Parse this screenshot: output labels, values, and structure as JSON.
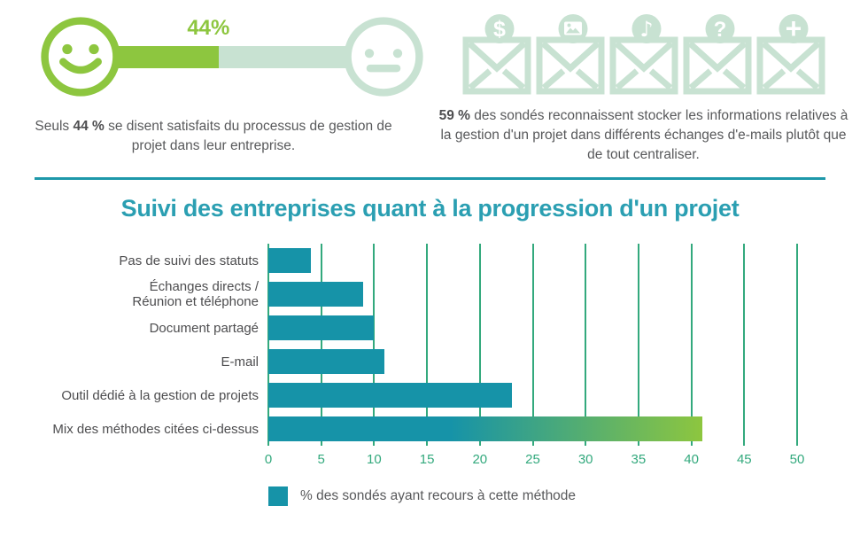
{
  "colors": {
    "green": "#8DC63F",
    "mint": "#C8E2D2",
    "teal_bar": "#1693A8",
    "teal_title": "#2B9FB2",
    "teal_divider": "#1E98AA",
    "grid_green": "#33A97D",
    "text_gray": "#58595B"
  },
  "satisfaction": {
    "percent_label": "44%",
    "percent_value": 44,
    "text_prefix": "Seuls ",
    "text_bold": "44 %",
    "text_suffix": " se disent satisfaits du processus de gestion de projet dans leur entreprise."
  },
  "emails": {
    "badges": [
      {
        "name": "dollar-icon",
        "glyph": "$"
      },
      {
        "name": "image-icon",
        "glyph": ""
      },
      {
        "name": "music-icon",
        "glyph": "♪"
      },
      {
        "name": "question-icon",
        "glyph": "?"
      },
      {
        "name": "plus-icon",
        "glyph": "+"
      }
    ],
    "text_bold": "59 %",
    "text_suffix": " des sondés reconnaissent stocker les informations relatives à la gestion d'un projet dans différents échanges d'e-mails plutôt que de tout centraliser."
  },
  "chart_data": {
    "type": "bar",
    "orientation": "horizontal",
    "title": "Suivi des entreprises quant à la progression d'un projet",
    "categories": [
      "Pas de suivi des statuts",
      "Échanges directs /\nRéunion et téléphone",
      "Document partagé",
      "E-mail",
      "Outil dédié à la gestion de projets",
      "Mix des méthodes citées ci-dessus"
    ],
    "values": [
      4,
      9,
      10,
      11,
      23,
      41
    ],
    "xlim": [
      0,
      50
    ],
    "xticks": [
      0,
      5,
      10,
      15,
      20,
      25,
      30,
      35,
      40,
      45,
      50
    ],
    "grid": true,
    "legend": "% des sondés ayant recours à cette méthode",
    "bar_color": "#1693A8",
    "last_bar_gradient": [
      "#1693A8",
      "#8DC63F"
    ],
    "ylabel": "",
    "xlabel": ""
  }
}
